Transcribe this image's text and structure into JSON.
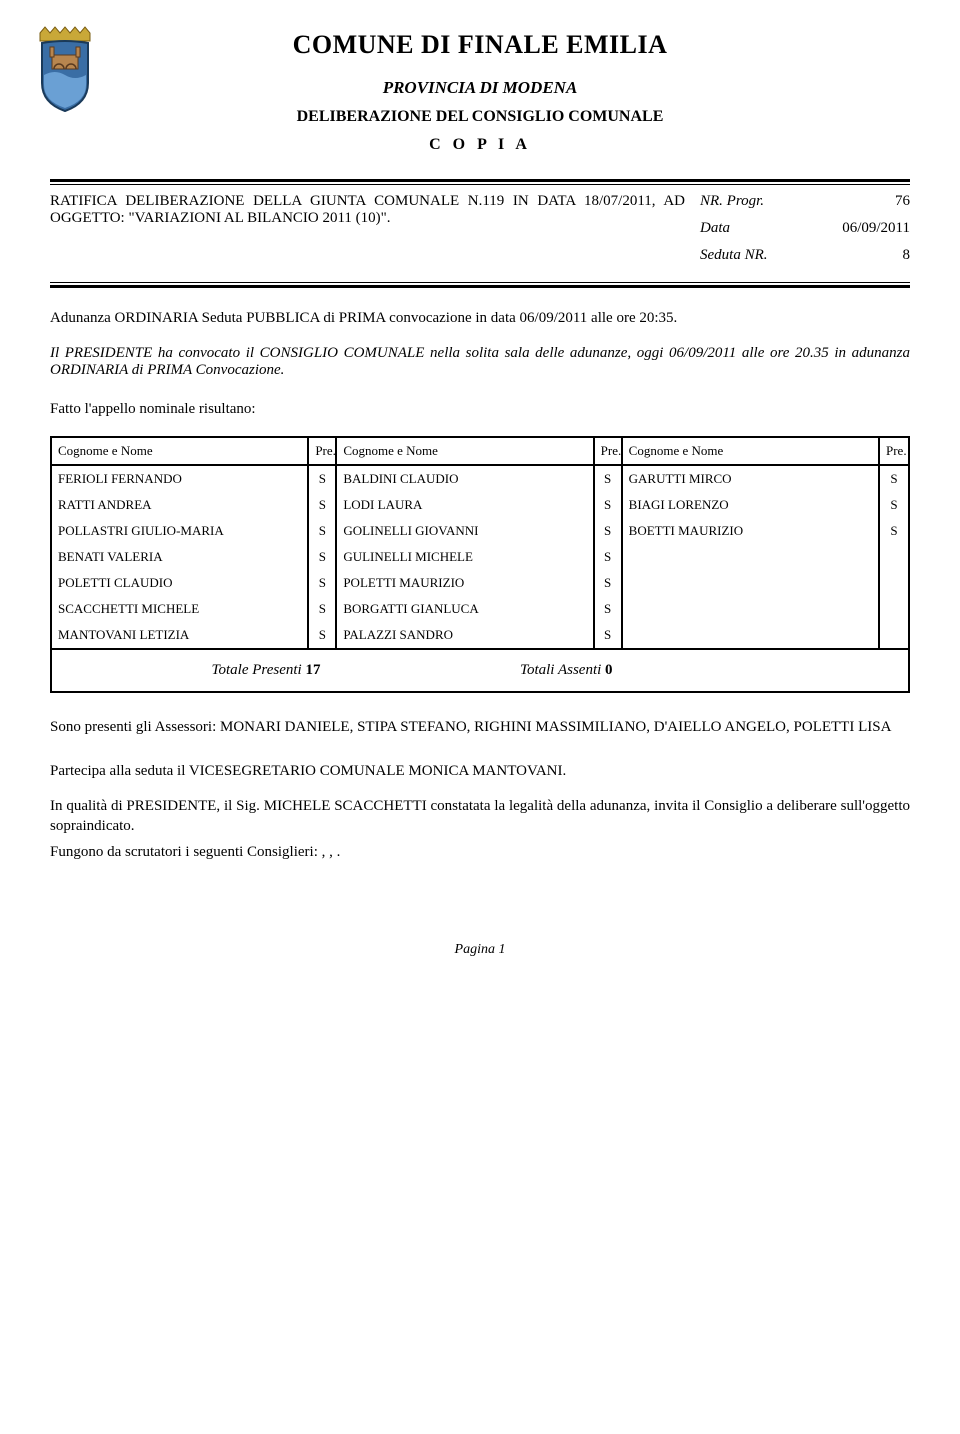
{
  "header": {
    "title": "COMUNE DI FINALE EMILIA",
    "province": "PROVINCIA DI MODENA",
    "deliberation": "DELIBERAZIONE DEL CONSIGLIO COMUNALE",
    "copia": "C O P I A"
  },
  "subject": {
    "text": "RATIFICA DELIBERAZIONE DELLA GIUNTA COMUNALE N.119 IN DATA 18/07/2011, AD OGGETTO: \"VARIAZIONI AL BILANCIO 2011 (10)\"."
  },
  "meta": {
    "nr_progr_label": "NR. Progr.",
    "nr_progr_value": "76",
    "data_label": "Data",
    "data_value": "06/09/2011",
    "seduta_label": "Seduta NR.",
    "seduta_value": "8"
  },
  "adunanza_text": "Adunanza ORDINARIA Seduta PUBBLICA di PRIMA convocazione in data 06/09/2011 alle ore 20:35.",
  "convocato_text": "Il PRESIDENTE ha convocato il CONSIGLIO COMUNALE nella solita sala delle adunanze, oggi 06/09/2011 alle ore 20.35 in adunanza ORDINARIA di PRIMA Convocazione.",
  "appello_text": "Fatto l'appello nominale risultano:",
  "attendance": {
    "header_name": "Cognome e Nome",
    "header_pre": "Pre.",
    "rows": [
      {
        "c1": "FERIOLI FERNANDO",
        "p1": "S",
        "c2": "BALDINI CLAUDIO",
        "p2": "S",
        "c3": "GARUTTI MIRCO",
        "p3": "S"
      },
      {
        "c1": "RATTI ANDREA",
        "p1": "S",
        "c2": "LODI LAURA",
        "p2": "S",
        "c3": "BIAGI LORENZO",
        "p3": "S"
      },
      {
        "c1": "POLLASTRI GIULIO-MARIA",
        "p1": "S",
        "c2": "GOLINELLI GIOVANNI",
        "p2": "S",
        "c3": "BOETTI MAURIZIO",
        "p3": "S"
      },
      {
        "c1": "BENATI VALERIA",
        "p1": "S",
        "c2": "GULINELLI MICHELE",
        "p2": "S",
        "c3": "",
        "p3": ""
      },
      {
        "c1": "POLETTI CLAUDIO",
        "p1": "S",
        "c2": "POLETTI MAURIZIO",
        "p2": "S",
        "c3": "",
        "p3": ""
      },
      {
        "c1": "SCACCHETTI MICHELE",
        "p1": "S",
        "c2": "BORGATTI GIANLUCA",
        "p2": "S",
        "c3": "",
        "p3": ""
      },
      {
        "c1": "MANTOVANI LETIZIA",
        "p1": "S",
        "c2": "PALAZZI SANDRO",
        "p2": "S",
        "c3": "",
        "p3": ""
      }
    ],
    "totale_presenti_label": "Totale Presenti",
    "totale_presenti_value": "17",
    "totali_assenti_label": "Totali Assenti",
    "totali_assenti_value": "0"
  },
  "assessori_text": "Sono presenti gli Assessori: MONARI DANIELE, STIPA STEFANO, RIGHINI MASSIMILIANO, D'AIELLO ANGELO, POLETTI LISA",
  "partecipa_text": "Partecipa alla seduta il VICESEGRETARIO COMUNALE  MONICA MANTOVANI.",
  "qualita_text": "In qualità di PRESIDENTE, il Sig.  MICHELE SCACCHETTI constatata la legalità della adunanza, invita il Consiglio a deliberare sull'oggetto sopraindicato.",
  "scrutatori_text": "Fungono da scrutatori i seguenti Consiglieri: , , .",
  "footer": "Pagina 1",
  "logo_colors": {
    "crown": "#c9a838",
    "shield_bg": "#3a6ea5",
    "wave": "#6aa0d4",
    "bridge": "#b8864f"
  }
}
